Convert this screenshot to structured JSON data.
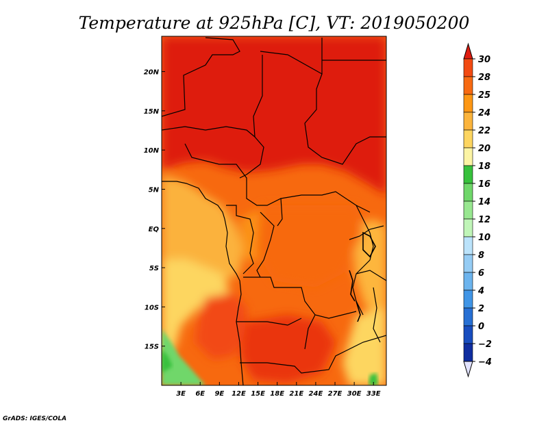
{
  "chart_data": {
    "type": "heatmap",
    "title": "Temperature at 925hPa [C], VT: 2019050200",
    "variable": "Temperature",
    "units": "C",
    "level": "925hPa",
    "valid_time": "2019050200",
    "x_ticks": [
      "3E",
      "6E",
      "9E",
      "12E",
      "15E",
      "18E",
      "21E",
      "24E",
      "27E",
      "30E",
      "33E"
    ],
    "x_tick_values": [
      3,
      6,
      9,
      12,
      15,
      18,
      21,
      24,
      27,
      30,
      33
    ],
    "xlim": [
      0,
      35
    ],
    "y_ticks": [
      "20N",
      "15N",
      "10N",
      "5N",
      "EQ",
      "5S",
      "10S",
      "15S"
    ],
    "y_tick_values": [
      20,
      15,
      10,
      5,
      0,
      -5,
      -10,
      -15
    ],
    "ylim": [
      -20,
      24.5
    ],
    "colorbar": {
      "labels": [
        "30",
        "28",
        "25",
        "24",
        "22",
        "20",
        "18",
        "16",
        "14",
        "12",
        "10",
        "8",
        "6",
        "4",
        "2",
        "0",
        "−2",
        "−4"
      ],
      "colors_top_to_bottom": [
        "#df1c10",
        "#f24a12",
        "#f76a12",
        "#fd9714",
        "#fbb43c",
        "#fdd560",
        "#fcf4a4",
        "#37c13c",
        "#6fd76a",
        "#98e790",
        "#c0f5b8",
        "#bbe3fb",
        "#95ccf4",
        "#6cb4ee",
        "#4095e6",
        "#2770d4",
        "#184dbf",
        "#0f2da0",
        "#091a7a"
      ],
      "end_triangle_colors": {
        "top": "#df1c10",
        "bottom": "#e1e2fe"
      }
    },
    "credit": "GrADS: IGES/COLA"
  }
}
